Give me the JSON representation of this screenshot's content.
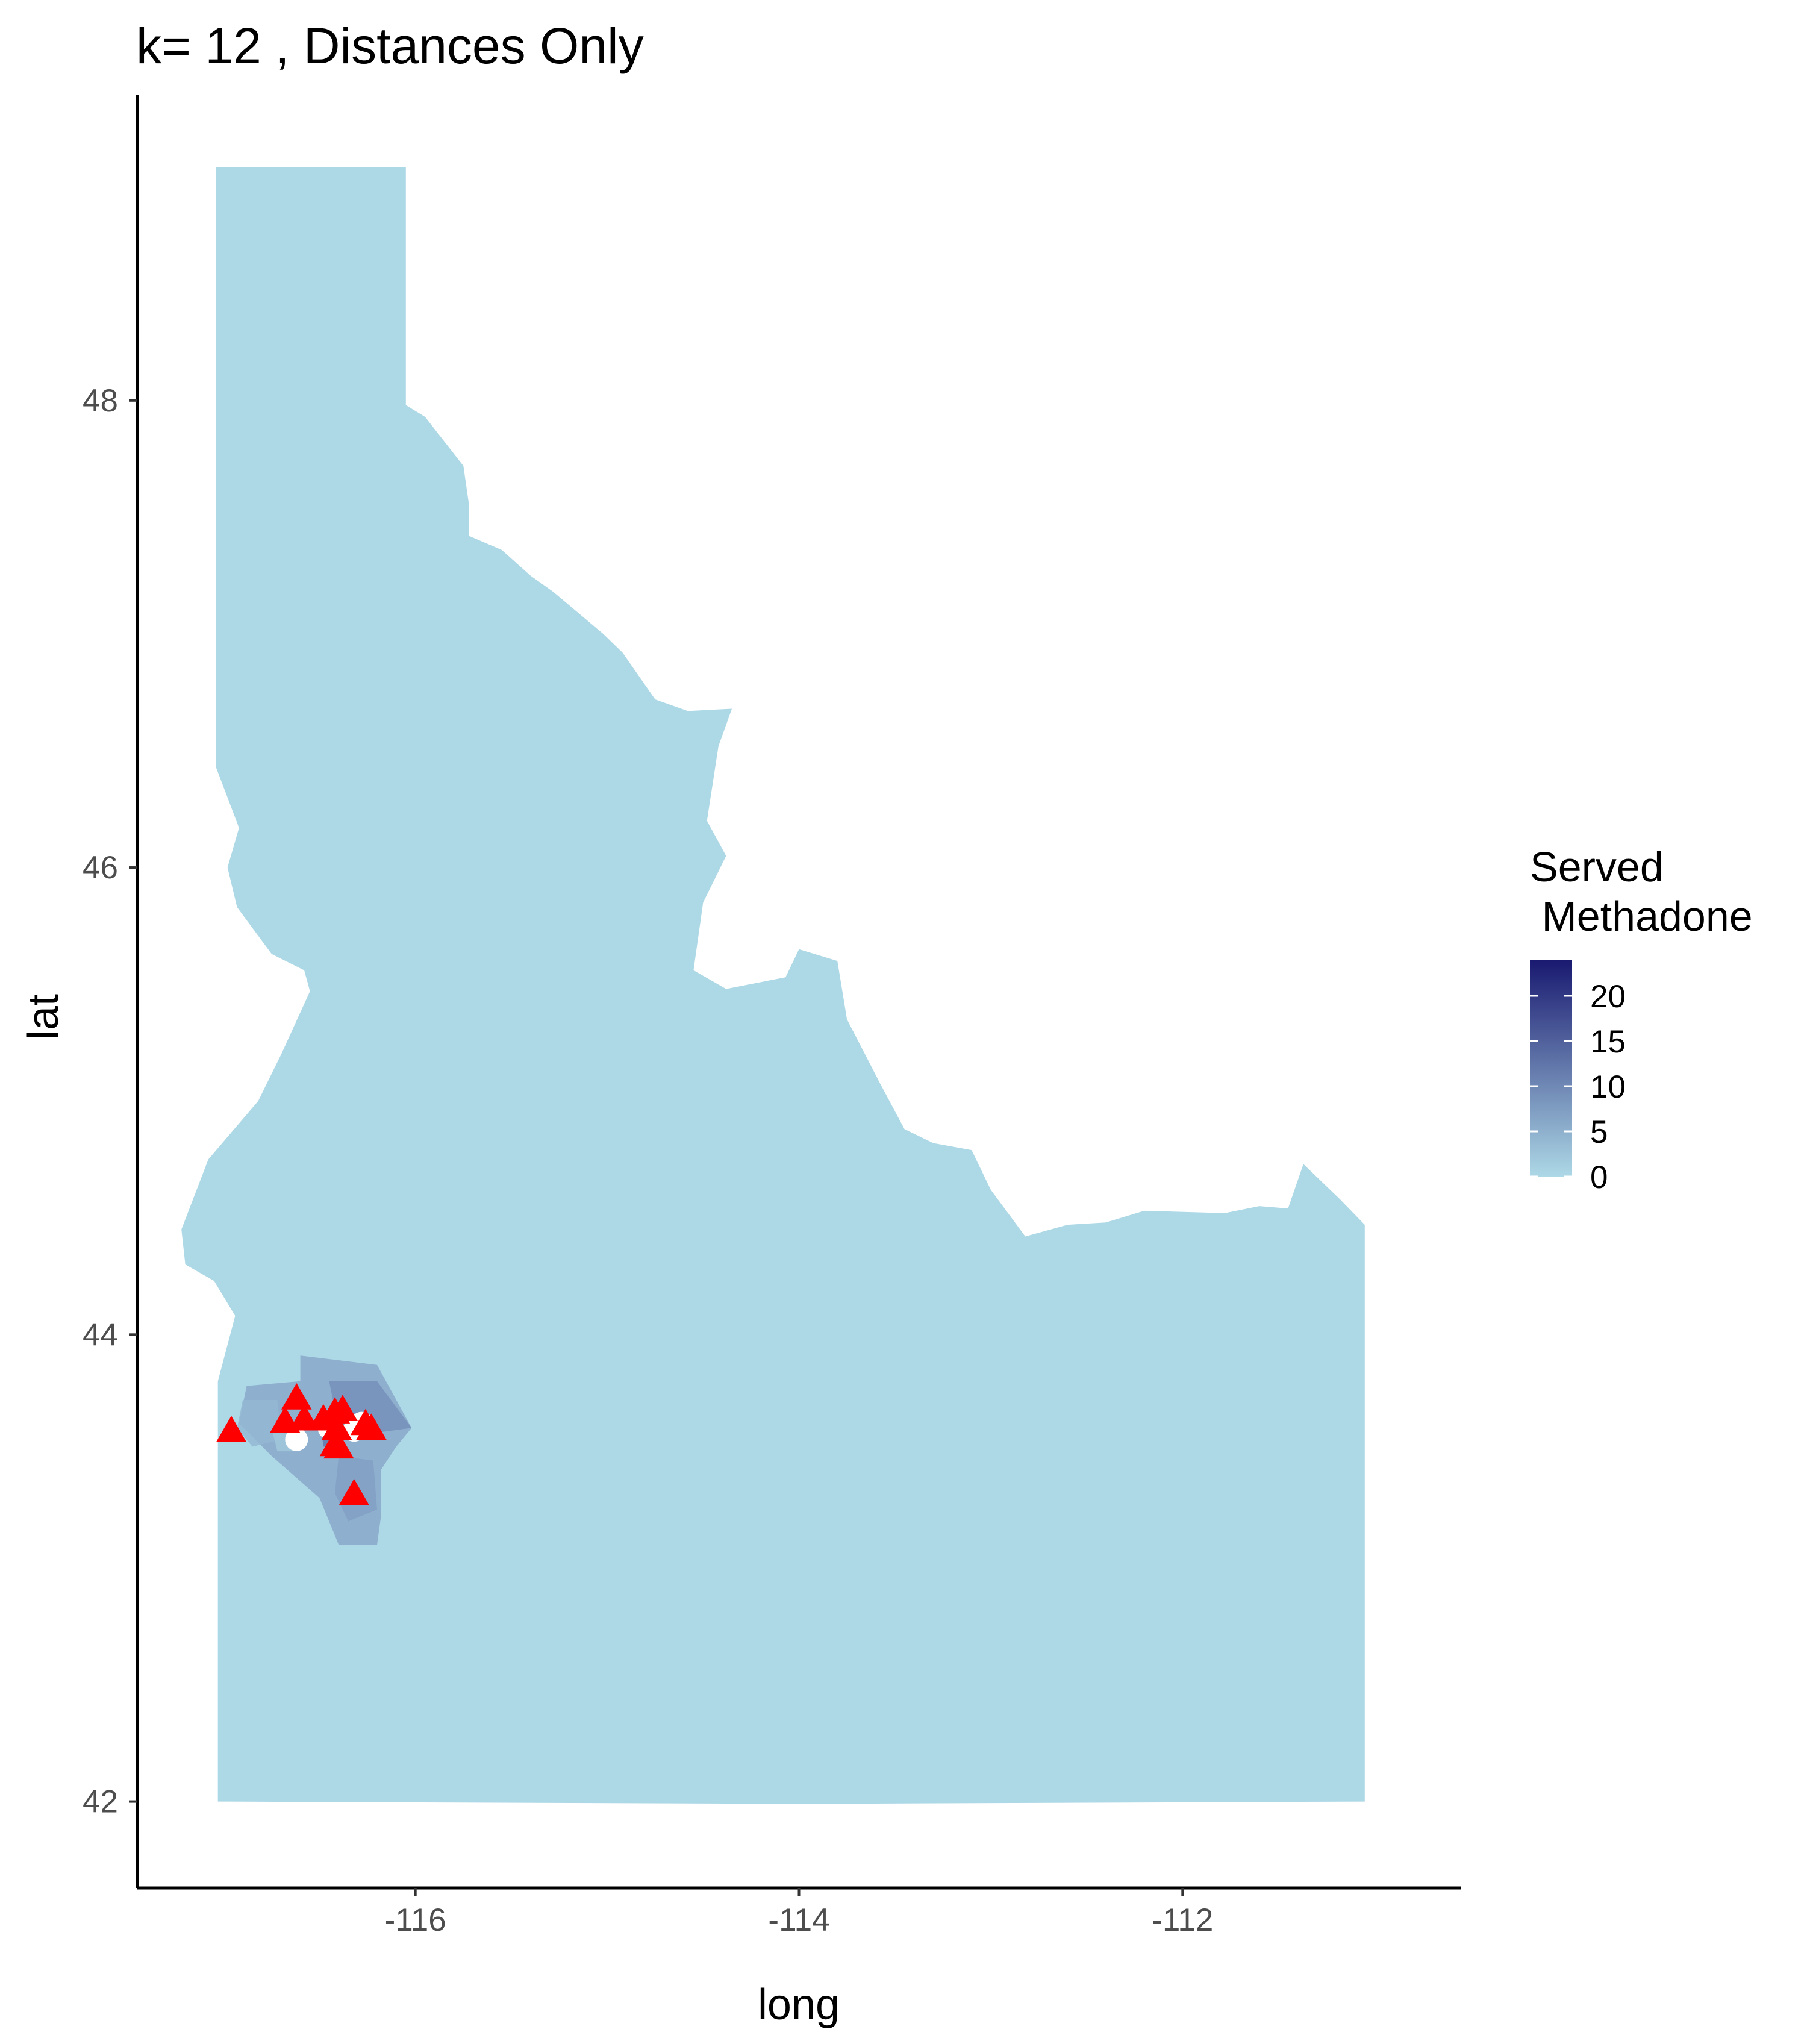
{
  "chart_data": {
    "type": "map",
    "title": "k= 12 , Distances Only",
    "xlabel": "long",
    "ylabel": "lat",
    "xlim": [
      -117.45,
      -110.55
    ],
    "ylim": [
      41.63,
      49.31
    ],
    "x_ticks": [
      {
        "value": -116,
        "label": "-116"
      },
      {
        "value": -114,
        "label": "-114"
      },
      {
        "value": -112,
        "label": "-112"
      }
    ],
    "y_ticks": [
      {
        "value": 42,
        "label": "42"
      },
      {
        "value": 44,
        "label": "44"
      },
      {
        "value": 46,
        "label": "46"
      },
      {
        "value": 48,
        "label": "48"
      }
    ],
    "grid": false,
    "legend": {
      "position": "right",
      "title_lines": [
        "Served",
        " Methadone"
      ],
      "min": 0,
      "max": 24,
      "low_color": "#add8e6",
      "high_color": "#191970",
      "breaks": [
        {
          "value": 0,
          "label": "0"
        },
        {
          "value": 5,
          "label": "5"
        },
        {
          "value": 10,
          "label": "10"
        },
        {
          "value": 15,
          "label": "15"
        },
        {
          "value": 20,
          "label": "20"
        }
      ]
    },
    "state_fill_value": 0,
    "state_outline": [
      [
        -117.04,
        49.0
      ],
      [
        -116.05,
        49.0
      ],
      [
        -116.05,
        47.98
      ],
      [
        -115.95,
        47.93
      ],
      [
        -115.75,
        47.72
      ],
      [
        -115.72,
        47.55
      ],
      [
        -115.72,
        47.42
      ],
      [
        -115.55,
        47.36
      ],
      [
        -115.4,
        47.25
      ],
      [
        -115.28,
        47.18
      ],
      [
        -115.02,
        47.0
      ],
      [
        -114.92,
        46.92
      ],
      [
        -114.75,
        46.72
      ],
      [
        -114.58,
        46.67
      ],
      [
        -114.35,
        46.68
      ],
      [
        -114.42,
        46.52
      ],
      [
        -114.48,
        46.2
      ],
      [
        -114.38,
        46.05
      ],
      [
        -114.5,
        45.85
      ],
      [
        -114.55,
        45.56
      ],
      [
        -114.38,
        45.48
      ],
      [
        -114.07,
        45.53
      ],
      [
        -114.0,
        45.65
      ],
      [
        -113.8,
        45.6
      ],
      [
        -113.75,
        45.35
      ],
      [
        -113.58,
        45.08
      ],
      [
        -113.45,
        44.88
      ],
      [
        -113.3,
        44.82
      ],
      [
        -113.1,
        44.79
      ],
      [
        -113.0,
        44.62
      ],
      [
        -112.82,
        44.42
      ],
      [
        -112.6,
        44.47
      ],
      [
        -112.4,
        44.48
      ],
      [
        -112.2,
        44.53
      ],
      [
        -111.78,
        44.52
      ],
      [
        -111.6,
        44.55
      ],
      [
        -111.45,
        44.54
      ],
      [
        -111.37,
        44.73
      ],
      [
        -111.18,
        44.58
      ],
      [
        -111.05,
        44.47
      ],
      [
        -111.05,
        42.0
      ],
      [
        -114.0,
        41.99
      ],
      [
        -117.03,
        42.0
      ],
      [
        -117.03,
        43.8
      ],
      [
        -116.94,
        44.08
      ],
      [
        -117.05,
        44.23
      ],
      [
        -117.2,
        44.3
      ],
      [
        -117.22,
        44.45
      ],
      [
        -117.08,
        44.75
      ],
      [
        -116.82,
        45.0
      ],
      [
        -116.7,
        45.2
      ],
      [
        -116.55,
        45.47
      ],
      [
        -116.58,
        45.56
      ],
      [
        -116.75,
        45.63
      ],
      [
        -116.93,
        45.83
      ],
      [
        -116.98,
        46.0
      ],
      [
        -116.92,
        46.17
      ],
      [
        -117.04,
        46.43
      ],
      [
        -117.04,
        49.0
      ]
    ],
    "service_region": {
      "label": "served-region",
      "polygons": [
        {
          "value": 6,
          "points": [
            [
              -116.6,
              43.91
            ],
            [
              -116.2,
              43.87
            ],
            [
              -116.02,
              43.6
            ],
            [
              -116.1,
              43.52
            ],
            [
              -116.18,
              43.42
            ],
            [
              -116.18,
              43.22
            ],
            [
              -116.2,
              43.1
            ],
            [
              -116.4,
              43.1
            ],
            [
              -116.5,
              43.3
            ],
            [
              -116.75,
              43.48
            ],
            [
              -116.92,
              43.62
            ],
            [
              -116.88,
              43.78
            ],
            [
              -116.6,
              43.8
            ]
          ]
        },
        {
          "value": 9,
          "points": [
            [
              -116.45,
              43.8
            ],
            [
              -116.2,
              43.8
            ],
            [
              -116.02,
              43.6
            ],
            [
              -116.2,
              43.58
            ],
            [
              -116.4,
              43.6
            ]
          ]
        },
        {
          "value": 4,
          "points": [
            [
              -116.9,
              43.72
            ],
            [
              -116.72,
              43.72
            ],
            [
              -116.7,
              43.55
            ],
            [
              -116.85,
              43.52
            ],
            [
              -116.93,
              43.6
            ]
          ]
        },
        {
          "value": 12,
          "points": [
            [
              -116.5,
              43.66
            ],
            [
              -116.4,
              43.64
            ],
            [
              -116.38,
              43.52
            ],
            [
              -116.48,
              43.52
            ]
          ]
        },
        {
          "value": 2,
          "points": [
            [
              -116.75,
              43.6
            ],
            [
              -116.62,
              43.6
            ],
            [
              -116.6,
              43.5
            ],
            [
              -116.72,
              43.5
            ]
          ]
        },
        {
          "value": 7,
          "points": [
            [
              -116.4,
              43.48
            ],
            [
              -116.22,
              43.46
            ],
            [
              -116.2,
              43.25
            ],
            [
              -116.35,
              43.2
            ],
            [
              -116.42,
              43.32
            ]
          ]
        }
      ]
    },
    "markers": {
      "red_triangles": [
        [
          -116.96,
          43.59
        ],
        [
          -116.62,
          43.73
        ],
        [
          -116.68,
          43.63
        ],
        [
          -116.58,
          43.64
        ],
        [
          -116.48,
          43.64
        ],
        [
          -116.42,
          43.67
        ],
        [
          -116.38,
          43.68
        ],
        [
          -116.41,
          43.6
        ],
        [
          -116.42,
          43.53
        ],
        [
          -116.4,
          43.52
        ],
        [
          -116.26,
          43.62
        ],
        [
          -116.23,
          43.6
        ],
        [
          -116.32,
          43.32
        ]
      ],
      "white_circles": [
        [
          -116.62,
          43.55
        ],
        [
          -116.45,
          43.6
        ],
        [
          -116.32,
          43.59
        ],
        [
          -116.28,
          43.62
        ]
      ]
    }
  }
}
